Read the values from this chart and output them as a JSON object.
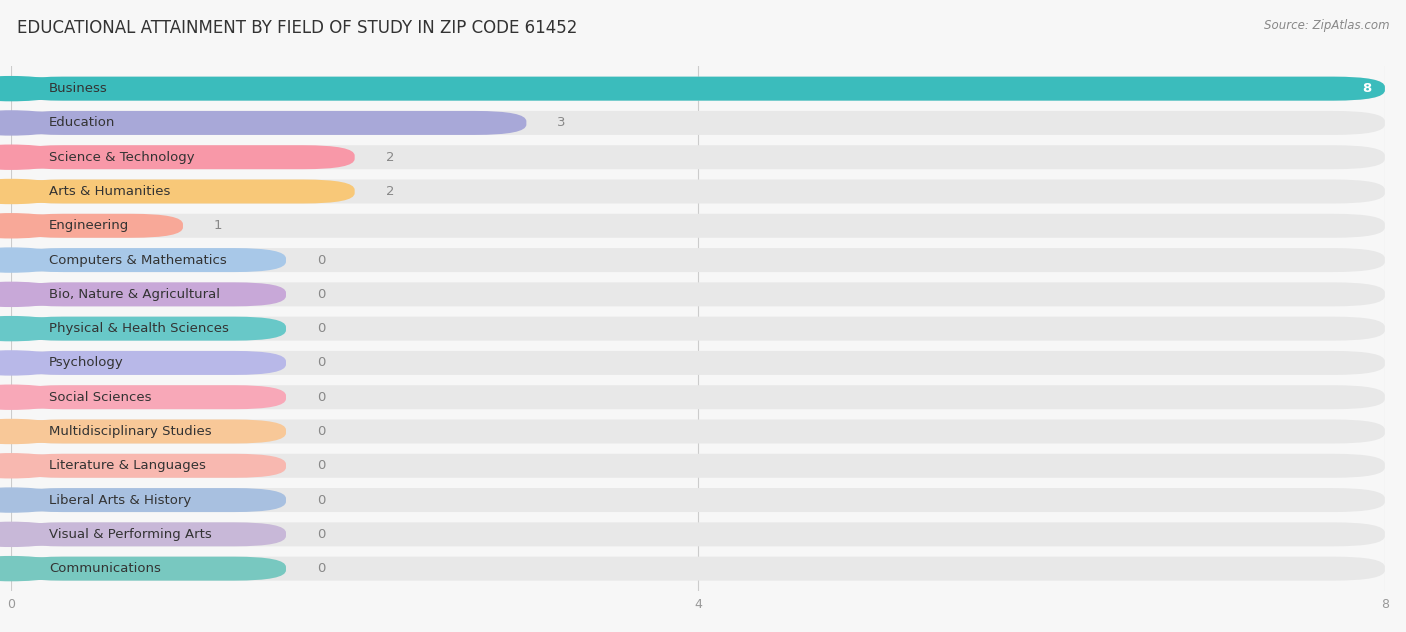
{
  "title": "EDUCATIONAL ATTAINMENT BY FIELD OF STUDY IN ZIP CODE 61452",
  "source": "Source: ZipAtlas.com",
  "categories": [
    "Business",
    "Education",
    "Science & Technology",
    "Arts & Humanities",
    "Engineering",
    "Computers & Mathematics",
    "Bio, Nature & Agricultural",
    "Physical & Health Sciences",
    "Psychology",
    "Social Sciences",
    "Multidisciplinary Studies",
    "Literature & Languages",
    "Liberal Arts & History",
    "Visual & Performing Arts",
    "Communications"
  ],
  "values": [
    8,
    3,
    2,
    2,
    1,
    0,
    0,
    0,
    0,
    0,
    0,
    0,
    0,
    0,
    0
  ],
  "bar_colors": [
    "#3bbcbc",
    "#a8a8d8",
    "#f898a8",
    "#f8c878",
    "#f8a898",
    "#a8c8e8",
    "#c8a8d8",
    "#68c8c8",
    "#b8b8e8",
    "#f8a8b8",
    "#f8c898",
    "#f8b8b0",
    "#a8c0e0",
    "#c8b8d8",
    "#78c8c0"
  ],
  "background_color": "#f7f7f7",
  "bar_background_color": "#e8e8e8",
  "xlim": [
    0,
    8
  ],
  "xticks": [
    0,
    4,
    8
  ],
  "value_color_inside": "#ffffff",
  "value_color_outside": "#888888",
  "title_fontsize": 12,
  "label_fontsize": 9.5,
  "value_fontsize": 9.5,
  "zero_bar_width": 1.6
}
